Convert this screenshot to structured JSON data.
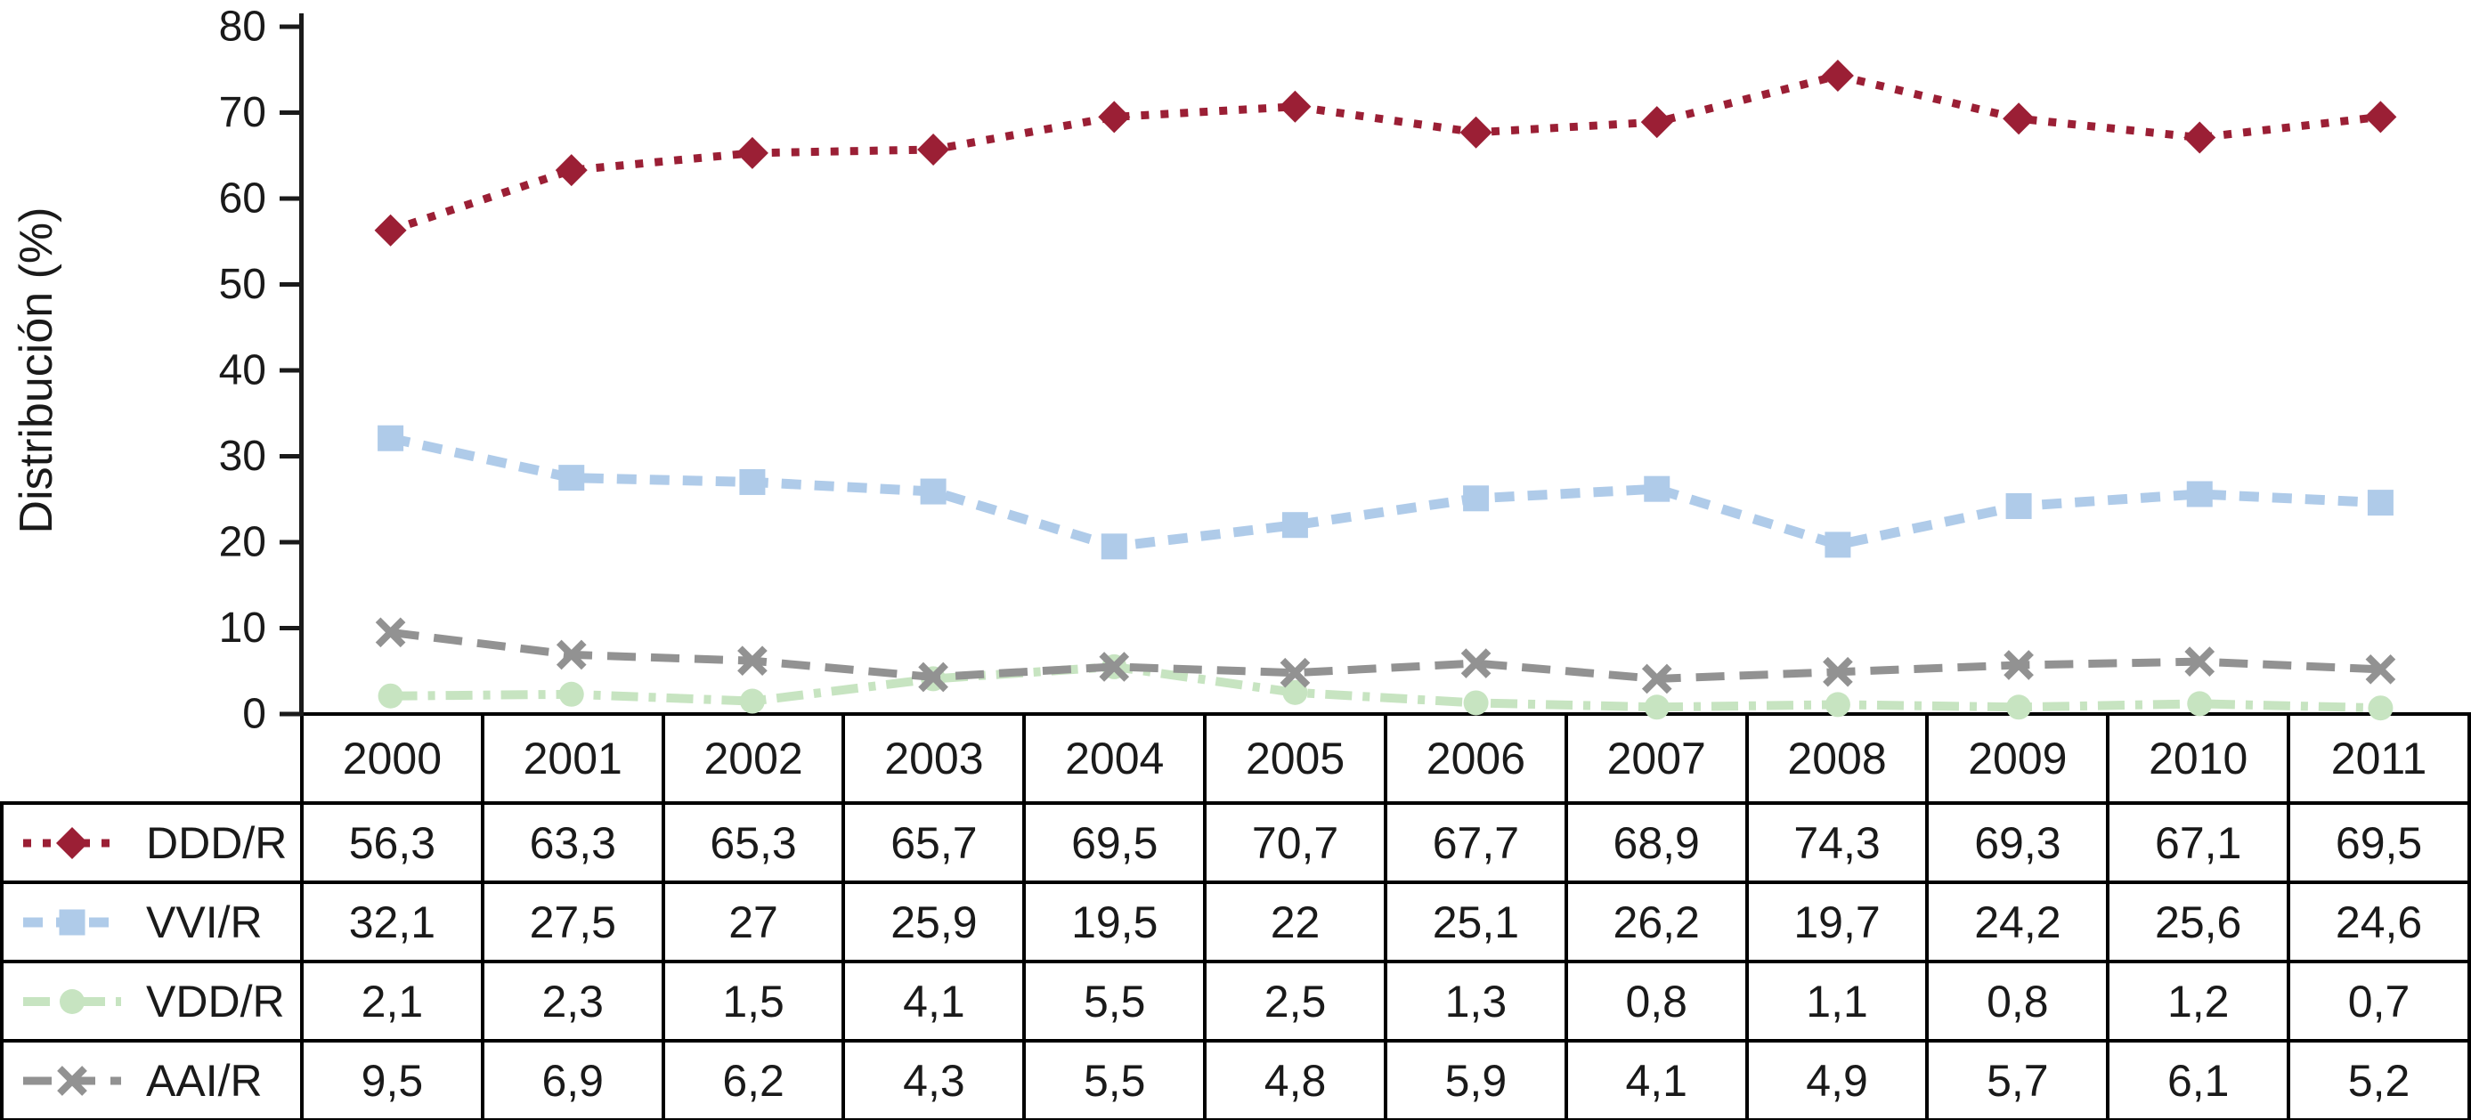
{
  "page": {
    "background": "#ffffff",
    "text_color": "#1a1a1a",
    "grid_color": "#000000"
  },
  "chart_data": {
    "type": "line",
    "title": "",
    "xlabel": "",
    "ylabel": "Distribución (%)",
    "ylim": [
      0,
      80
    ],
    "ytick_step": 10,
    "ytick_labels": [
      "0",
      "10",
      "20",
      "30",
      "40",
      "50",
      "60",
      "70",
      "80"
    ],
    "grid": false,
    "legend_position": "table-left-column",
    "categories": [
      "2000",
      "2001",
      "2002",
      "2003",
      "2004",
      "2005",
      "2006",
      "2007",
      "2008",
      "2009",
      "2010",
      "2011"
    ],
    "series": [
      {
        "name": "DDD/R",
        "marker": "diamond",
        "line_style": "dotted",
        "color": "#9B1F35",
        "values": [
          56.3,
          63.3,
          65.3,
          65.7,
          69.5,
          70.7,
          67.7,
          68.9,
          74.3,
          69.3,
          67.1,
          69.5
        ]
      },
      {
        "name": "VVI/R",
        "marker": "square",
        "line_style": "dashed",
        "color": "#AFCBE9",
        "values": [
          32.1,
          27.5,
          27,
          25.9,
          19.5,
          22,
          25.1,
          26.2,
          19.7,
          24.2,
          25.6,
          24.6
        ]
      },
      {
        "name": "VDD/R",
        "marker": "circle",
        "line_style": "dash-dot",
        "color": "#C7E4C1",
        "values": [
          2.1,
          2.3,
          1.5,
          4.1,
          5.5,
          2.5,
          1.3,
          0.8,
          1.1,
          0.8,
          1.2,
          0.7
        ]
      },
      {
        "name": "AAI/R",
        "marker": "x-cross",
        "line_style": "long-dash",
        "color": "#929292",
        "values": [
          9.5,
          6.9,
          6.2,
          4.3,
          5.5,
          4.8,
          5.9,
          4.1,
          4.9,
          5.7,
          6.1,
          5.2
        ]
      }
    ],
    "value_decimal_separator": ","
  },
  "table": {
    "header_years": [
      "2000",
      "2001",
      "2002",
      "2003",
      "2004",
      "2005",
      "2006",
      "2007",
      "2008",
      "2009",
      "2010",
      "2011"
    ],
    "rows": [
      {
        "label": "DDD/R",
        "display_values": [
          "56,3",
          "63,3",
          "65,3",
          "65,7",
          "69,5",
          "70,7",
          "67,7",
          "68,9",
          "74,3",
          "69,3",
          "67,1",
          "69,5"
        ]
      },
      {
        "label": "VVI/R",
        "display_values": [
          "32,1",
          "27,5",
          "27",
          "25,9",
          "19,5",
          "22",
          "25,1",
          "26,2",
          "19,7",
          "24,2",
          "25,6",
          "24,6"
        ]
      },
      {
        "label": "VDD/R",
        "display_values": [
          "2,1",
          "2,3",
          "1,5",
          "4,1",
          "5,5",
          "2,5",
          "1,3",
          "0,8",
          "1,1",
          "0,8",
          "1,2",
          "0,7"
        ]
      },
      {
        "label": "AAI/R",
        "display_values": [
          "9,5",
          "6,9",
          "6,2",
          "4,3",
          "5,5",
          "4,8",
          "5,9",
          "4,1",
          "4,9",
          "5,7",
          "6,1",
          "5,2"
        ]
      }
    ]
  }
}
